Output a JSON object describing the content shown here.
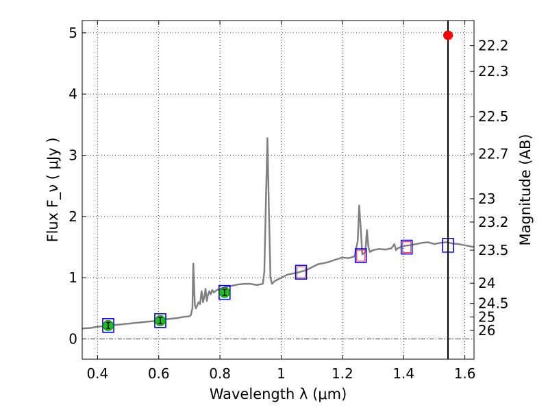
{
  "chart_data": {
    "type": "line",
    "title": "",
    "xlabel": "Wavelength λ (μm)",
    "ylabel": "Flux F_ν ( μJy )",
    "right_ylabel": "Magnitude (AB)",
    "xlim": [
      0.35,
      1.63
    ],
    "ylim": [
      -0.33,
      5.2
    ],
    "x_ticks": [
      0.4,
      0.6,
      0.8,
      1.0,
      1.2,
      1.4,
      1.6
    ],
    "x_tick_labels": [
      "0.4",
      "0.6",
      "0.8",
      "1",
      "1.2",
      "1.4",
      "1.6"
    ],
    "y_ticks": [
      0,
      1,
      2,
      3,
      4,
      5
    ],
    "y_tick_labels": [
      "0",
      "1",
      "2",
      "3",
      "4",
      "5"
    ],
    "right_y_ticks": [
      {
        "label": "22.2",
        "flux": 4.79
      },
      {
        "label": "22.3",
        "flux": 4.37
      },
      {
        "label": "22.5",
        "flux": 3.63
      },
      {
        "label": "22.7",
        "flux": 3.02
      },
      {
        "label": "23",
        "flux": 2.29
      },
      {
        "label": "23.2",
        "flux": 1.91
      },
      {
        "label": "23.5",
        "flux": 1.45
      },
      {
        "label": "24",
        "flux": 0.91
      },
      {
        "label": "24.5",
        "flux": 0.58
      },
      {
        "label": "25",
        "flux": 0.36
      },
      {
        "label": "26",
        "flux": 0.14
      }
    ],
    "grid": true,
    "zero_line": true,
    "vertical_line_x": 1.545,
    "series": [
      {
        "style": "line",
        "color": "#808080",
        "x": [
          0.35,
          0.38,
          0.4,
          0.42,
          0.44,
          0.46,
          0.48,
          0.5,
          0.52,
          0.54,
          0.56,
          0.58,
          0.6,
          0.62,
          0.64,
          0.66,
          0.68,
          0.7,
          0.705,
          0.71,
          0.713,
          0.718,
          0.722,
          0.73,
          0.735,
          0.74,
          0.745,
          0.75,
          0.753,
          0.757,
          0.76,
          0.765,
          0.77,
          0.775,
          0.78,
          0.79,
          0.8,
          0.82,
          0.84,
          0.86,
          0.88,
          0.9,
          0.92,
          0.94,
          0.945,
          0.95,
          0.955,
          0.96,
          0.965,
          0.97,
          0.98,
          1.0,
          1.02,
          1.05,
          1.08,
          1.1,
          1.12,
          1.15,
          1.18,
          1.2,
          1.22,
          1.24,
          1.25,
          1.255,
          1.26,
          1.265,
          1.27,
          1.275,
          1.28,
          1.285,
          1.29,
          1.3,
          1.32,
          1.34,
          1.36,
          1.37,
          1.375,
          1.38,
          1.39,
          1.4,
          1.42,
          1.44,
          1.46,
          1.48,
          1.5,
          1.52,
          1.54,
          1.56,
          1.58,
          1.6,
          1.63
        ],
        "y": [
          0.17,
          0.18,
          0.2,
          0.21,
          0.22,
          0.23,
          0.24,
          0.25,
          0.26,
          0.27,
          0.28,
          0.29,
          0.3,
          0.32,
          0.33,
          0.34,
          0.36,
          0.37,
          0.39,
          0.5,
          1.23,
          0.55,
          0.5,
          0.6,
          0.57,
          0.78,
          0.6,
          0.72,
          0.82,
          0.62,
          0.7,
          0.78,
          0.73,
          0.8,
          0.76,
          0.8,
          0.82,
          0.85,
          0.87,
          0.89,
          0.9,
          0.9,
          0.88,
          0.9,
          1.1,
          2.2,
          3.28,
          2.1,
          1.0,
          0.9,
          0.95,
          1.0,
          1.05,
          1.08,
          1.12,
          1.17,
          1.22,
          1.25,
          1.3,
          1.33,
          1.32,
          1.35,
          1.6,
          2.18,
          1.8,
          1.38,
          1.4,
          1.42,
          1.78,
          1.5,
          1.42,
          1.45,
          1.47,
          1.46,
          1.48,
          1.55,
          1.45,
          1.48,
          1.5,
          1.52,
          1.53,
          1.55,
          1.57,
          1.58,
          1.55,
          1.57,
          1.58,
          1.56,
          1.55,
          1.53,
          1.5
        ]
      },
      {
        "style": "points",
        "marker": "blue-square",
        "color": "#0000ff",
        "x": [
          0.435,
          0.605,
          0.815,
          1.065,
          1.26,
          1.41,
          1.545
        ],
        "y": [
          0.22,
          0.3,
          0.76,
          1.09,
          1.36,
          1.5,
          1.53
        ]
      },
      {
        "style": "points",
        "marker": "red-square",
        "color": "#ff4040",
        "x": [
          1.065,
          1.26,
          1.41
        ],
        "y": [
          1.09,
          1.36,
          1.5
        ]
      },
      {
        "style": "points",
        "marker": "green-circle-errorbar",
        "color": "#22bb22",
        "x": [
          0.435,
          0.605,
          0.815
        ],
        "y": [
          0.22,
          0.3,
          0.76
        ],
        "err": [
          0.05,
          0.05,
          0.05
        ]
      },
      {
        "style": "points",
        "marker": "red-circle",
        "color": "#ff0000",
        "x": [
          1.545
        ],
        "y": [
          4.96
        ]
      }
    ]
  }
}
